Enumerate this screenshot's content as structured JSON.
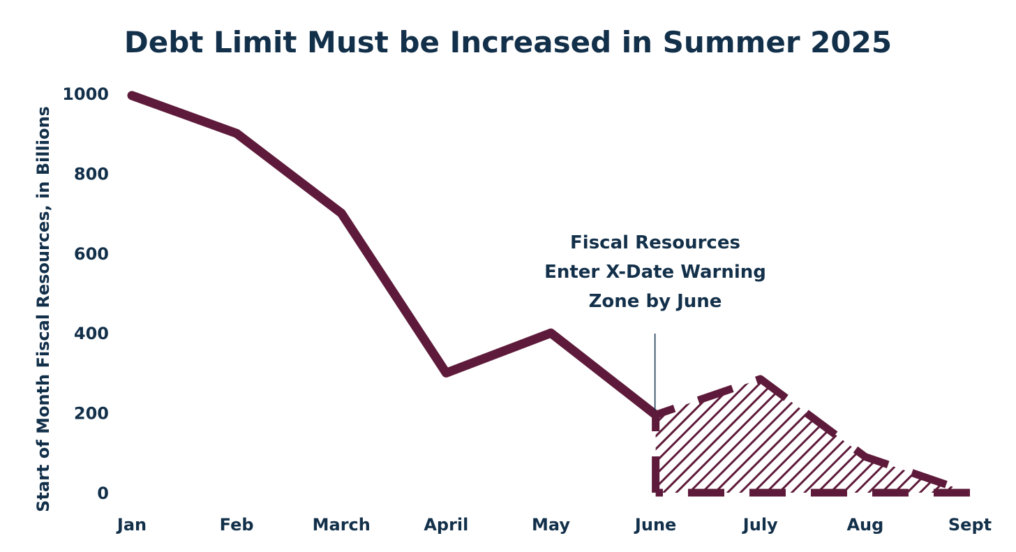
{
  "chart_data": {
    "type": "line",
    "title": "Debt Limit Must be Increased in Summer 2025",
    "xlabel": "",
    "ylabel": "Start of Month Fiscal Resources, in Billions",
    "categories": [
      "Jan",
      "Feb",
      "March",
      "April",
      "May",
      "June",
      "July",
      "Aug",
      "Sept"
    ],
    "ylim": [
      0,
      1000
    ],
    "yticks": [
      "1000",
      "800",
      "600",
      "400",
      "200",
      "0"
    ],
    "grid": false,
    "legend": "none",
    "series": [
      {
        "values": [
          995,
          900,
          700,
          300,
          400,
          195,
          null,
          null,
          null
        ],
        "style": "solid"
      },
      {
        "values": [
          null,
          null,
          null,
          null,
          null,
          195,
          285,
          90,
          0
        ],
        "style": "dashed-hatched-area"
      }
    ],
    "annotation": {
      "lines": [
        "Fiscal Resources",
        "Enter X-Date Warning",
        "Zone by June"
      ],
      "points_to": "June"
    },
    "colors": {
      "line": "#5e1a3a",
      "text": "#13304a"
    }
  }
}
